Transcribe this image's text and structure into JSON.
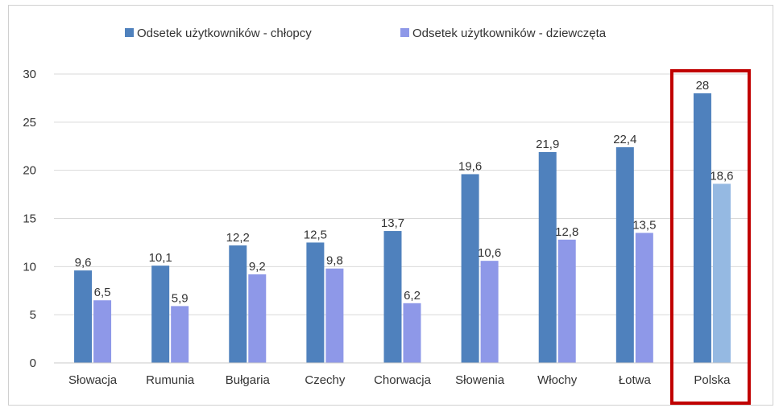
{
  "chart_data": {
    "type": "bar",
    "title": "",
    "xlabel": "",
    "ylabel": "",
    "ylim": [
      0,
      30
    ],
    "yticks": [
      0,
      5,
      10,
      15,
      20,
      25,
      30
    ],
    "legend_position": "top-center",
    "grid": true,
    "categories": [
      "Słowacja",
      "Rumunia",
      "Bułgaria",
      "Czechy",
      "Chorwacja",
      "Słowenia",
      "Włochy",
      "Łotwa",
      "Polska"
    ],
    "series": [
      {
        "name": "Odsetek użytkowników - chłopcy",
        "color": "#4f81bd",
        "values": [
          9.6,
          10.1,
          12.2,
          12.5,
          13.7,
          19.6,
          21.9,
          22.4,
          28
        ],
        "labels": [
          "9,6",
          "10,1",
          "12,2",
          "12,5",
          "13,7",
          "19,6",
          "21,9",
          "22,4",
          "28"
        ]
      },
      {
        "name": "Odsetek użytkowników - dziewczęta",
        "color": "#8e98e8",
        "values": [
          6.5,
          5.9,
          9.2,
          9.8,
          6.2,
          10.6,
          12.8,
          13.5,
          18.6
        ],
        "labels": [
          "6,5",
          "5,9",
          "9,2",
          "9,8",
          "6,2",
          "10,6",
          "12,8",
          "13,5",
          "18,6"
        ]
      }
    ],
    "highlight": {
      "category": "Polska",
      "frame_color": "#c00000",
      "girls_bar_color": "#95b9e2"
    }
  }
}
